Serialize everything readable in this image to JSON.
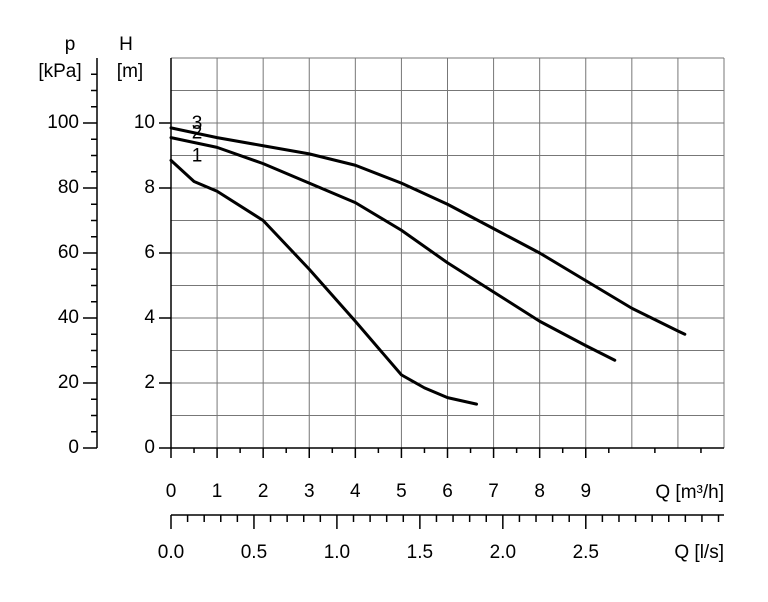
{
  "chart_data": {
    "type": "line",
    "x_label": "Q [m³/h]",
    "x2_label": "Q [l/s]",
    "y_label": "H",
    "y_unit": "[m]",
    "y2_label": "p",
    "y2_unit": "[kPa]",
    "xlim": [
      0,
      12
    ],
    "xticks": [
      0,
      1,
      2,
      3,
      4,
      5,
      6,
      7,
      8,
      9
    ],
    "xgrid": [
      0,
      1,
      2,
      3,
      4,
      5,
      6,
      7,
      8,
      9,
      10,
      11,
      12
    ],
    "xminor": [
      0.5,
      1.5,
      2.5,
      3.5,
      4.5,
      5.5,
      6.5,
      7.5,
      8.5,
      9.5,
      10.5,
      11.5
    ],
    "x2lim": [
      0,
      3.333
    ],
    "x2ticks": [
      {
        "value": 0,
        "label": "0.0"
      },
      0.5,
      {
        "value": 1,
        "label": "1.0"
      },
      1.5,
      {
        "value": 2,
        "label": "2.0"
      },
      2.5
    ],
    "x2minor": [
      0.1,
      0.2,
      0.3,
      0.4,
      0.6,
      0.7,
      0.8,
      0.9,
      1.1,
      1.2,
      1.3,
      1.4,
      1.6,
      1.7,
      1.8,
      1.9,
      2.1,
      2.2,
      2.3,
      2.4,
      2.6,
      2.7,
      2.8,
      2.9,
      3,
      3.1,
      3.2,
      3.3
    ],
    "ylim": [
      0,
      12
    ],
    "yticks": [
      0,
      2,
      4,
      6,
      8,
      10
    ],
    "ygrid": [
      1,
      2,
      3,
      4,
      5,
      6,
      7,
      8,
      9,
      10,
      11,
      12
    ],
    "y2lim": [
      0,
      120
    ],
    "y2ticks": [
      0,
      20,
      40,
      60,
      80,
      100
    ],
    "y2minor": [
      5,
      10,
      15,
      25,
      30,
      35,
      45,
      50,
      55,
      65,
      70,
      75,
      85,
      90,
      95,
      105,
      110,
      115
    ],
    "series": [
      {
        "name": "1",
        "color": "#000000",
        "x": [
          0,
          0.5,
          1,
          2,
          3,
          4,
          5,
          5.5,
          6,
          6.63
        ],
        "values": [
          8.85,
          8.2,
          7.9,
          7.0,
          5.5,
          3.9,
          2.25,
          1.85,
          1.55,
          1.35
        ]
      },
      {
        "name": "2",
        "color": "#000000",
        "x": [
          0,
          1,
          2,
          3,
          4,
          5,
          6,
          7,
          8,
          9,
          9.63
        ],
        "values": [
          9.55,
          9.25,
          8.75,
          8.15,
          7.55,
          6.7,
          5.7,
          4.8,
          3.9,
          3.15,
          2.7
        ]
      },
      {
        "name": "3",
        "color": "#000000",
        "x": [
          0,
          1,
          2,
          3,
          4,
          5,
          6,
          7,
          8,
          9,
          10,
          11,
          11.15
        ],
        "values": [
          9.85,
          9.55,
          9.3,
          9.05,
          8.7,
          8.15,
          7.5,
          6.75,
          6.0,
          5.15,
          4.3,
          3.6,
          3.5
        ]
      }
    ]
  }
}
